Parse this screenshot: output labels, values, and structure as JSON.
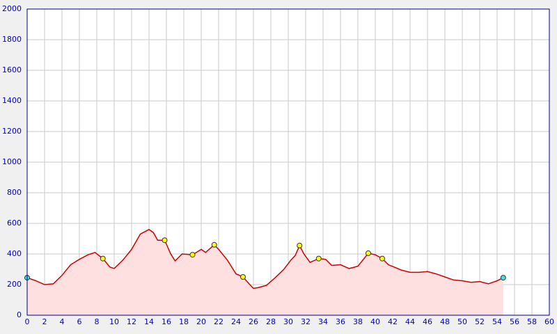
{
  "chart_data": {
    "type": "area",
    "x": [
      0,
      1,
      2,
      3,
      4,
      5,
      6,
      7,
      7.8,
      8.7,
      9.5,
      10,
      11,
      12,
      13,
      14,
      14.5,
      15,
      15.8,
      16.5,
      17,
      17.8,
      19,
      20,
      20.5,
      21.5,
      22,
      23,
      24,
      24.8,
      25.5,
      26,
      26.5,
      27.5,
      28.5,
      29.5,
      30.3,
      30.8,
      31.3,
      31.8,
      32.5,
      33.5,
      34.3,
      35,
      36,
      37,
      38,
      39.2,
      40,
      40.8,
      41.5,
      43,
      44,
      45,
      46,
      47,
      48,
      49,
      50,
      51,
      52,
      53,
      54,
      54.7
    ],
    "values": [
      245,
      225,
      200,
      205,
      260,
      330,
      365,
      395,
      410,
      370,
      315,
      305,
      360,
      430,
      530,
      560,
      540,
      490,
      490,
      400,
      355,
      400,
      395,
      430,
      410,
      460,
      430,
      360,
      270,
      250,
      205,
      175,
      180,
      195,
      245,
      300,
      360,
      390,
      455,
      400,
      345,
      370,
      365,
      325,
      330,
      305,
      320,
      405,
      395,
      370,
      330,
      295,
      280,
      280,
      285,
      270,
      250,
      230,
      225,
      215,
      220,
      205,
      225,
      245
    ],
    "color": "#d00000",
    "fill": "#ffe0e0",
    "markers": {
      "x": [
        0,
        8.7,
        15.8,
        19,
        21.5,
        24.8,
        31.3,
        33.5,
        39.2,
        40.8,
        54.7
      ],
      "values": [
        245,
        370,
        490,
        395,
        460,
        250,
        455,
        370,
        405,
        370,
        245
      ],
      "colors": [
        "#40e0e0",
        "#ffff00",
        "#ffff00",
        "#ffff00",
        "#ffff00",
        "#ffff00",
        "#ffff00",
        "#ffff00",
        "#ffff00",
        "#ffff00",
        "#40e0e0"
      ]
    },
    "xlim": [
      0,
      60
    ],
    "xticks": [
      0,
      2,
      4,
      6,
      8,
      10,
      12,
      14,
      16,
      18,
      20,
      22,
      24,
      26,
      28,
      30,
      32,
      34,
      36,
      38,
      40,
      42,
      44,
      46,
      48,
      50,
      52,
      54,
      56,
      58,
      60
    ],
    "ylim": [
      0,
      2000
    ],
    "yticks": [
      0,
      200,
      400,
      600,
      800,
      1000,
      1200,
      1400,
      1600,
      1800,
      2000
    ],
    "grid": true
  }
}
